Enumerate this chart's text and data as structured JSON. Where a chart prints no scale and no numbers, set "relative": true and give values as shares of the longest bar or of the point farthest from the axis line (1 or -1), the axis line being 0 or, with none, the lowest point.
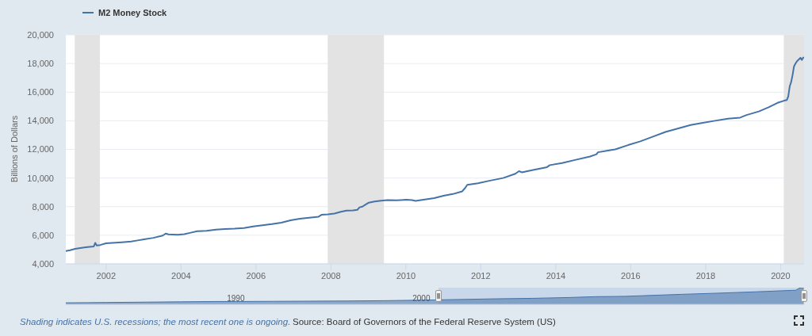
{
  "chart_data": [
    {
      "type": "line",
      "ylabel": "Billions of Dollars",
      "annotations": [
        "Shading indicates U.S. recessions; the most recent one is ongoing.",
        "Source: Board of Governors of the Federal Reserve System (US)"
      ],
      "x": [
        "2000-12-04",
        "2001-01-15",
        "2001-03-05",
        "2001-05-07",
        "2001-07-02",
        "2001-09-03",
        "2001-09-17",
        "2001-10-01",
        "2001-11-05",
        "2001-12-31",
        "2002-03-04",
        "2002-06-03",
        "2002-09-02",
        "2002-11-04",
        "2003-01-06",
        "2003-04-07",
        "2003-07-07",
        "2003-08-04",
        "2003-09-01",
        "2003-12-01",
        "2004-02-02",
        "2004-04-05",
        "2004-06-07",
        "2004-09-06",
        "2004-12-06",
        "2005-03-07",
        "2005-06-06",
        "2005-09-05",
        "2005-12-05",
        "2006-03-06",
        "2006-06-05",
        "2006-09-04",
        "2006-12-04",
        "2007-03-05",
        "2007-06-04",
        "2007-09-03",
        "2007-10-01",
        "2007-12-03",
        "2008-02-04",
        "2008-04-07",
        "2008-06-02",
        "2008-08-04",
        "2008-09-15",
        "2008-10-06",
        "2008-11-03",
        "2008-12-01",
        "2009-01-05",
        "2009-03-02",
        "2009-05-04",
        "2009-07-06",
        "2009-10-05",
        "2010-01-04",
        "2010-03-01",
        "2010-04-05",
        "2010-07-05",
        "2010-10-04",
        "2011-01-03",
        "2011-04-04",
        "2011-07-04",
        "2011-08-01",
        "2011-08-22",
        "2011-12-05",
        "2012-04-02",
        "2012-08-06",
        "2012-12-03",
        "2013-01-07",
        "2013-02-04",
        "2013-06-03",
        "2013-10-07",
        "2013-11-04",
        "2014-03-03",
        "2014-07-07",
        "2014-12-01",
        "2015-02-02",
        "2015-02-16",
        "2015-08-03",
        "2015-12-07",
        "2016-04-04",
        "2016-08-01",
        "2016-12-05",
        "2017-04-03",
        "2017-08-07",
        "2017-12-04",
        "2018-04-02",
        "2018-08-06",
        "2018-12-03",
        "2019-02-04",
        "2019-06-03",
        "2019-09-02",
        "2019-12-02",
        "2020-02-03",
        "2020-03-02",
        "2020-03-16",
        "2020-03-30",
        "2020-04-13",
        "2020-04-27",
        "2020-05-11",
        "2020-05-25",
        "2020-06-08",
        "2020-06-29",
        "2020-07-13",
        "2020-07-27",
        "2020-08-10"
      ],
      "series": [
        {
          "name": "M2 Money Stock",
          "color": "#4572a7",
          "values": [
            4900,
            4960,
            5050,
            5120,
            5170,
            5220,
            5470,
            5290,
            5320,
            5440,
            5470,
            5510,
            5560,
            5640,
            5720,
            5820,
            5980,
            6120,
            6060,
            6040,
            6080,
            6180,
            6280,
            6310,
            6400,
            6440,
            6460,
            6510,
            6610,
            6700,
            6780,
            6880,
            7050,
            7150,
            7220,
            7300,
            7430,
            7460,
            7520,
            7640,
            7720,
            7740,
            7780,
            7950,
            8000,
            8130,
            8280,
            8360,
            8420,
            8450,
            8440,
            8480,
            8460,
            8400,
            8500,
            8600,
            8760,
            8880,
            9070,
            9300,
            9520,
            9630,
            9820,
            10000,
            10300,
            10480,
            10400,
            10570,
            10760,
            10900,
            11040,
            11260,
            11500,
            11660,
            11800,
            12000,
            12300,
            12560,
            12880,
            13220,
            13450,
            13700,
            13850,
            14000,
            14150,
            14220,
            14400,
            14650,
            14930,
            15250,
            15400,
            15450,
            15700,
            16400,
            16700,
            17200,
            17800,
            17990,
            18150,
            18300,
            18400,
            18250,
            18420
          ]
        }
      ],
      "xlim": [
        "2000-12-04",
        "2020-08-17"
      ],
      "xticks": [
        "2002",
        "2004",
        "2006",
        "2008",
        "2010",
        "2012",
        "2014",
        "2016",
        "2018",
        "2020"
      ],
      "ylim": [
        4000,
        20000
      ],
      "yticks": [
        {
          "value": 4000,
          "label": "4,000"
        },
        {
          "value": 6000,
          "label": "6,000"
        },
        {
          "value": 8000,
          "label": "8,000"
        },
        {
          "value": 10000,
          "label": "10,000"
        },
        {
          "value": 12000,
          "label": "12,000"
        },
        {
          "value": 14000,
          "label": "14,000"
        },
        {
          "value": 16000,
          "label": "16,000"
        },
        {
          "value": 18000,
          "label": "18,000"
        },
        {
          "value": 20000,
          "label": "20,000"
        }
      ],
      "bands": [
        {
          "axis": "x",
          "from": "2001-03-01",
          "to": "2001-11-01",
          "color": "#e3e3e3"
        },
        {
          "axis": "x",
          "from": "2007-12-01",
          "to": "2009-06-01",
          "color": "#e3e3e3"
        },
        {
          "axis": "x",
          "from": "2020-02-01",
          "to": "2020-08-17",
          "color": "#e3e3e3"
        }
      ],
      "grid": "y",
      "legend": "top left"
    },
    {
      "type": "area",
      "relative": true,
      "x": [
        "1980-11-03",
        "1982-01-04",
        "1983-01-03",
        "1984-01-02",
        "1986-01-06",
        "1987-01-05",
        "1989-01-02",
        "1990-01-01",
        "1992-01-06",
        "1994-01-03",
        "1996-01-01",
        "1998-01-05",
        "2000-01-03",
        "2001-01-01",
        "2002-01-07",
        "2004-01-05",
        "2006-01-02",
        "2008-01-07",
        "2009-06-01",
        "2011-01-03",
        "2012-01-02",
        "2014-01-06",
        "2016-01-04",
        "2018-01-01",
        "2020-01-06",
        "2020-03-02",
        "2020-04-13",
        "2020-05-11",
        "2020-06-29",
        "2020-08-10"
      ],
      "series": [
        {
          "color": "#4572a7",
          "values": [
            0.09,
            0.1,
            0.11,
            0.12,
            0.14,
            0.15,
            0.17,
            0.17,
            0.18,
            0.19,
            0.2,
            0.22,
            0.25,
            0.27,
            0.29,
            0.33,
            0.36,
            0.41,
            0.46,
            0.48,
            0.52,
            0.6,
            0.67,
            0.75,
            0.84,
            0.84,
            0.91,
            0.97,
            0.99,
            1
          ]
        }
      ],
      "xlim": [
        "1980-11-03",
        "2020-08-17"
      ],
      "xticks": [
        "1990",
        "2000"
      ],
      "bands": [
        {
          "axis": "x",
          "from": "2000-12-04",
          "to": "2020-08-17",
          "color": "#c3d2ea"
        }
      ]
    }
  ]
}
